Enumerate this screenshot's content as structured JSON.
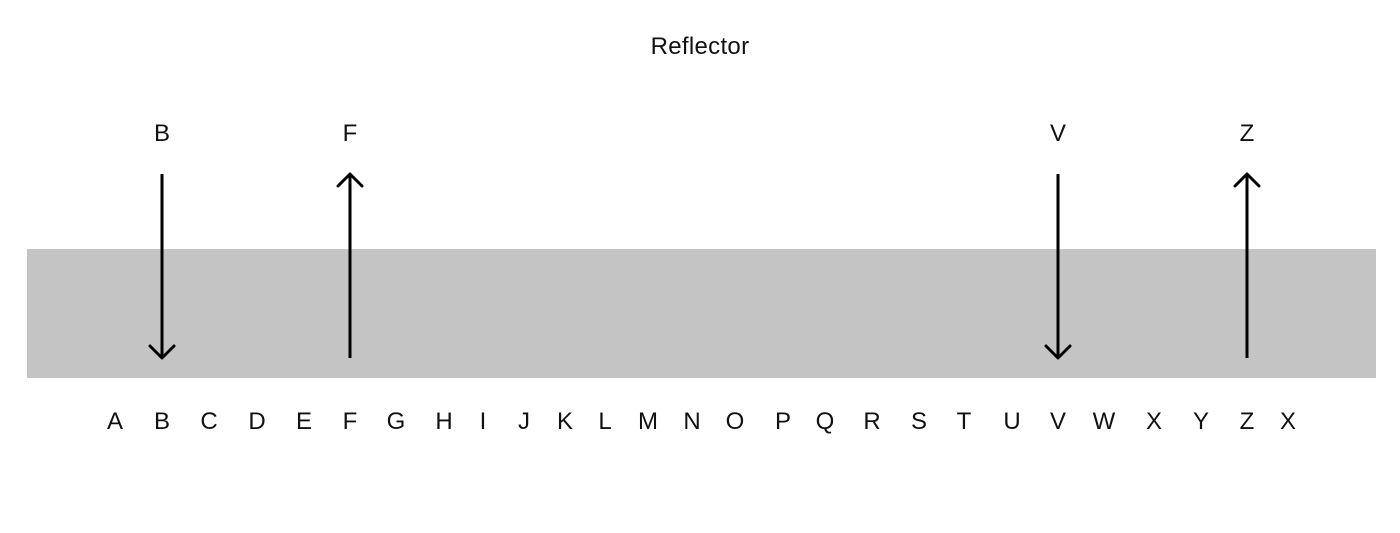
{
  "title": "Reflector",
  "band_color": "#c4c4c4",
  "arrow_color": "#000000",
  "alphabet": [
    "A",
    "B",
    "C",
    "D",
    "E",
    "F",
    "G",
    "H",
    "I",
    "J",
    "K",
    "L",
    "M",
    "N",
    "O",
    "P",
    "Q",
    "R",
    "S",
    "T",
    "U",
    "V",
    "W",
    "X",
    "Y",
    "Z",
    "X"
  ],
  "arrows": [
    {
      "letter": "B",
      "direction": "down"
    },
    {
      "letter": "F",
      "direction": "up"
    },
    {
      "letter": "V",
      "direction": "down"
    },
    {
      "letter": "Z",
      "direction": "up"
    }
  ]
}
